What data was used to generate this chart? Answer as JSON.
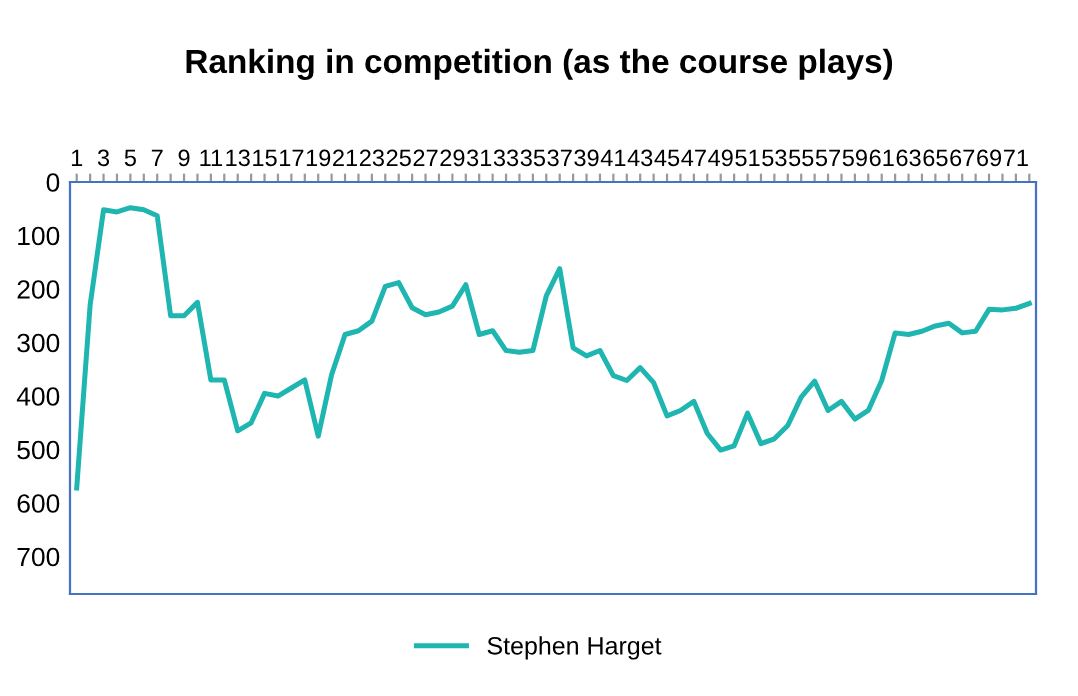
{
  "chart_data": {
    "type": "line",
    "title": "Ranking in competition (as the course plays)",
    "categories": [
      "1",
      null,
      "3",
      null,
      "5",
      null,
      "7",
      null,
      "9",
      null,
      "11",
      null,
      "13",
      null,
      "15",
      null,
      "17",
      null,
      "19",
      null,
      "21",
      null,
      "23",
      null,
      "25",
      null,
      "27",
      null,
      "29",
      null,
      "31",
      null,
      "33",
      null,
      "35",
      null,
      "37",
      null,
      "39",
      null,
      "41",
      null,
      "43",
      null,
      "45",
      null,
      "47",
      null,
      "49",
      null,
      "51",
      null,
      "53",
      null,
      "55",
      null,
      "57",
      null,
      "59",
      null,
      "61",
      null,
      "63",
      null,
      "65",
      null,
      "67",
      null,
      "69",
      null,
      "71",
      null
    ],
    "series": [
      {
        "name": "Stephen Harget",
        "color": "#1fb5b0",
        "values": [
          572,
          230,
          52,
          56,
          48,
          52,
          63,
          250,
          250,
          225,
          370,
          370,
          465,
          450,
          395,
          400,
          385,
          370,
          475,
          360,
          285,
          278,
          260,
          195,
          188,
          235,
          248,
          243,
          232,
          192,
          285,
          278,
          315,
          318,
          315,
          213,
          162,
          310,
          325,
          315,
          362,
          371,
          347,
          375,
          437,
          427,
          410,
          470,
          501,
          493,
          432,
          489,
          480,
          455,
          402,
          372,
          427,
          410,
          443,
          427,
          371,
          282,
          285,
          279,
          269,
          264,
          282,
          279,
          238,
          239,
          236,
          227
        ]
      }
    ],
    "ylim": [
      770,
      0
    ],
    "yticks": [
      0,
      100,
      200,
      300,
      400,
      500,
      600,
      700
    ],
    "grid": false,
    "legend": "bottom",
    "marker": "none",
    "line_style": "solid"
  }
}
